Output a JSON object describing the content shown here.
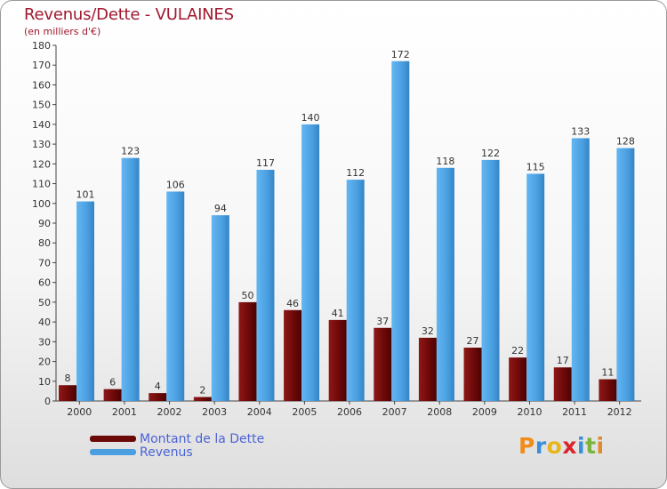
{
  "title": "Revenus/Dette - VULAINES",
  "subtitle": "(en milliers d'€)",
  "colors": {
    "dette": "#6b0808",
    "dette_light": "#8f1d1d",
    "revenus": "#4a9fe0",
    "revenus_light": "#5fb0ee",
    "title": "#a0182e",
    "legend_text": "#4a63d6"
  },
  "chart_data": {
    "type": "bar",
    "title": "Revenus/Dette - VULAINES",
    "ylabel": "(en milliers d'€)",
    "xlabel": "",
    "ylim": [
      0,
      180
    ],
    "ytick_step": 10,
    "yticks": [
      "0",
      "10",
      "20",
      "30",
      "40",
      "50",
      "60",
      "70",
      "80",
      "90",
      "100",
      "110",
      "120",
      "130",
      "140",
      "150",
      "160",
      "170",
      "180"
    ],
    "grid": false,
    "legend_position": "bottom-left",
    "categories": [
      "2000",
      "2001",
      "2002",
      "2003",
      "2004",
      "2005",
      "2006",
      "2007",
      "2008",
      "2009",
      "2010",
      "2011",
      "2012"
    ],
    "series": [
      {
        "name": "Montant de la Dette",
        "values": [
          8,
          6,
          4,
          2,
          50,
          46,
          41,
          37,
          32,
          27,
          22,
          17,
          11
        ]
      },
      {
        "name": "Revenus",
        "values": [
          101,
          123,
          106,
          94,
          117,
          140,
          112,
          172,
          118,
          122,
          115,
          133,
          128
        ]
      }
    ]
  },
  "legend": [
    {
      "label": "Montant de la Dette"
    },
    {
      "label": "Revenus"
    }
  ],
  "logo": {
    "text": "Proxiti",
    "letters": [
      "P",
      "r",
      "o",
      "x",
      "i",
      "t",
      "i"
    ]
  }
}
